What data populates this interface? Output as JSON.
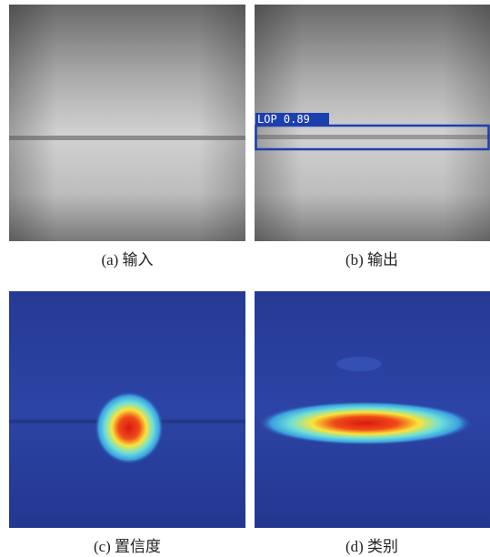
{
  "figure": {
    "panels": [
      {
        "caption": "(a) 输入"
      },
      {
        "caption": "(b) 输出",
        "detection_label": "LOP 0.89"
      },
      {
        "caption": "(c) 置信度"
      },
      {
        "caption": "(d) 类别"
      }
    ]
  }
}
